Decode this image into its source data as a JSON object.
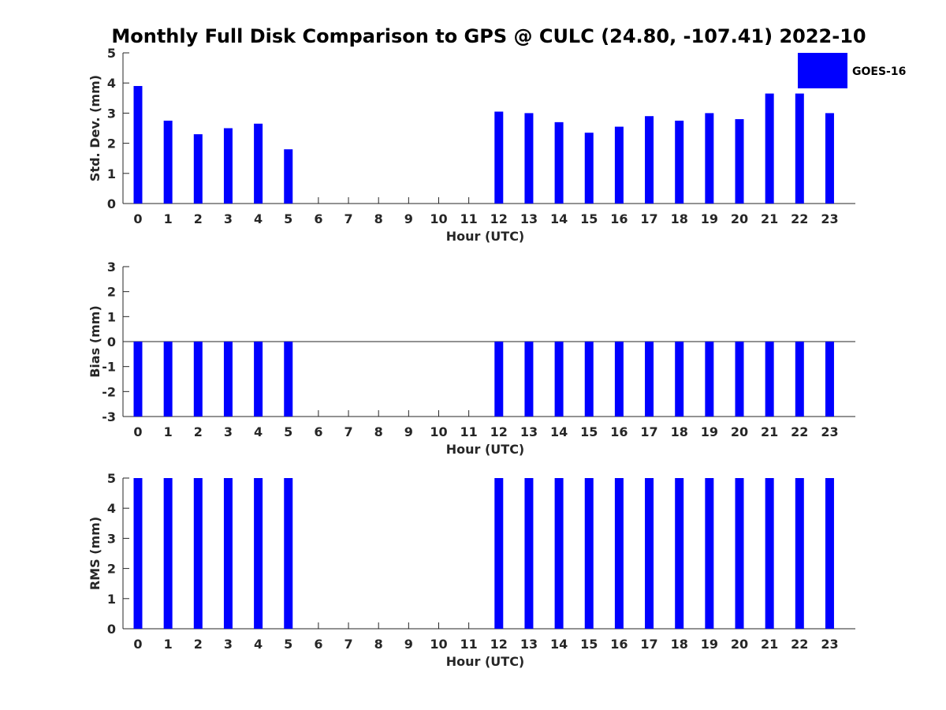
{
  "figure": {
    "title": "Monthly Full Disk Comparison to GPS @ CULC (24.80, -107.41) 2022-10"
  },
  "legend": {
    "label": "GOES-16",
    "color": "#0000ff",
    "placement": "top-right"
  },
  "chart_data": [
    {
      "type": "bar",
      "ylabel": "Std. Dev. (mm)",
      "xlabel": "Hour (UTC)",
      "ylim": [
        0,
        5
      ],
      "yticks": [
        "0",
        "1",
        "2",
        "3",
        "4",
        "5"
      ],
      "categories": [
        "0",
        "1",
        "2",
        "3",
        "4",
        "5",
        "6",
        "7",
        "8",
        "9",
        "10",
        "11",
        "12",
        "13",
        "14",
        "15",
        "16",
        "17",
        "18",
        "19",
        "20",
        "21",
        "22",
        "23"
      ],
      "series": [
        {
          "name": "GOES-16",
          "values": [
            3.9,
            2.75,
            2.3,
            2.5,
            2.65,
            1.8,
            null,
            null,
            null,
            null,
            null,
            null,
            3.05,
            3.0,
            2.7,
            2.35,
            2.55,
            2.9,
            2.75,
            3.0,
            2.8,
            3.65,
            3.65,
            3.0
          ]
        }
      ]
    },
    {
      "type": "bar",
      "ylabel": "Bias (mm)",
      "xlabel": "Hour (UTC)",
      "ylim": [
        -3,
        3
      ],
      "yticks": [
        "-3",
        "-2",
        "-1",
        "0",
        "1",
        "2",
        "3"
      ],
      "zero_line": true,
      "categories": [
        "0",
        "1",
        "2",
        "3",
        "4",
        "5",
        "6",
        "7",
        "8",
        "9",
        "10",
        "11",
        "12",
        "13",
        "14",
        "15",
        "16",
        "17",
        "18",
        "19",
        "20",
        "21",
        "22",
        "23"
      ],
      "series": [
        {
          "name": "GOES-16",
          "values": [
            -3.0,
            -3.0,
            -3.0,
            -3.0,
            -3.0,
            -3.0,
            null,
            null,
            null,
            null,
            null,
            null,
            -3.0,
            -3.0,
            -3.0,
            -3.0,
            -3.0,
            -3.0,
            -3.0,
            -3.0,
            -3.0,
            -3.0,
            -3.0,
            -3.0
          ]
        }
      ]
    },
    {
      "type": "bar",
      "ylabel": "RMS (mm)",
      "xlabel": "Hour (UTC)",
      "ylim": [
        0,
        5
      ],
      "yticks": [
        "0",
        "1",
        "2",
        "3",
        "4",
        "5"
      ],
      "categories": [
        "0",
        "1",
        "2",
        "3",
        "4",
        "5",
        "6",
        "7",
        "8",
        "9",
        "10",
        "11",
        "12",
        "13",
        "14",
        "15",
        "16",
        "17",
        "18",
        "19",
        "20",
        "21",
        "22",
        "23"
      ],
      "series": [
        {
          "name": "GOES-16",
          "values": [
            5.0,
            5.0,
            5.0,
            5.0,
            5.0,
            5.0,
            null,
            null,
            null,
            null,
            null,
            null,
            5.0,
            5.0,
            5.0,
            5.0,
            5.0,
            5.0,
            5.0,
            5.0,
            5.0,
            5.0,
            5.0,
            5.0
          ]
        }
      ]
    }
  ]
}
